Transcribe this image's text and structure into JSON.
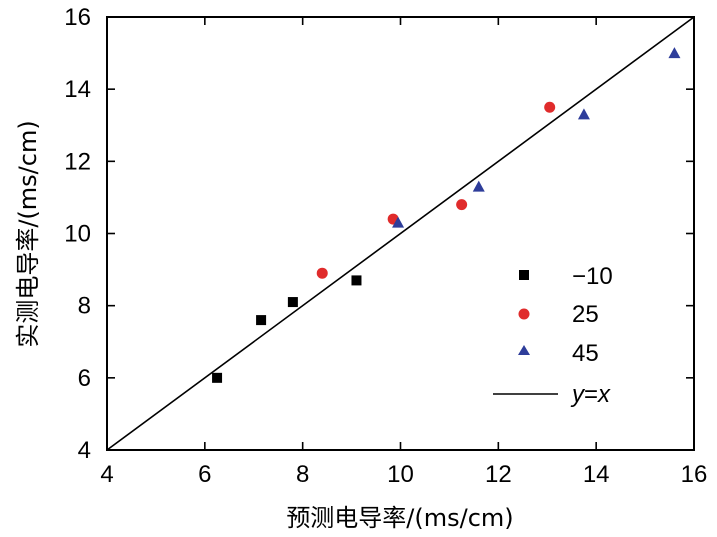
{
  "chart_data": {
    "type": "scatter",
    "title": "",
    "xlabel": "预测电导率/(ms/cm)",
    "ylabel": "实测电导率/(ms/cm)",
    "xlim": [
      4,
      16
    ],
    "ylim": [
      4,
      16
    ],
    "xticks": [
      4,
      6,
      8,
      10,
      12,
      14,
      16
    ],
    "yticks": [
      4,
      6,
      8,
      10,
      12,
      14,
      16
    ],
    "grid": false,
    "legend_position": "center-right",
    "series": [
      {
        "name": "−10",
        "marker": "square",
        "color": "#000000",
        "points": [
          [
            6.25,
            6.0
          ],
          [
            7.15,
            7.6
          ],
          [
            7.8,
            8.1
          ],
          [
            9.1,
            8.7
          ]
        ]
      },
      {
        "name": "25",
        "marker": "circle",
        "color": "#e02b2b",
        "points": [
          [
            8.4,
            8.9
          ],
          [
            9.85,
            10.4
          ],
          [
            11.25,
            10.8
          ],
          [
            13.05,
            13.5
          ]
        ]
      },
      {
        "name": "45",
        "marker": "triangle",
        "color": "#2e3d9a",
        "points": [
          [
            9.95,
            10.3
          ],
          [
            11.6,
            11.3
          ],
          [
            13.75,
            13.3
          ],
          [
            15.6,
            15.0
          ]
        ]
      }
    ],
    "reference_line": {
      "name": "x",
      "label_prefix": "y",
      "label_eq": "=",
      "from": [
        4,
        4
      ],
      "to": [
        16,
        16
      ],
      "color": "#000000"
    }
  }
}
